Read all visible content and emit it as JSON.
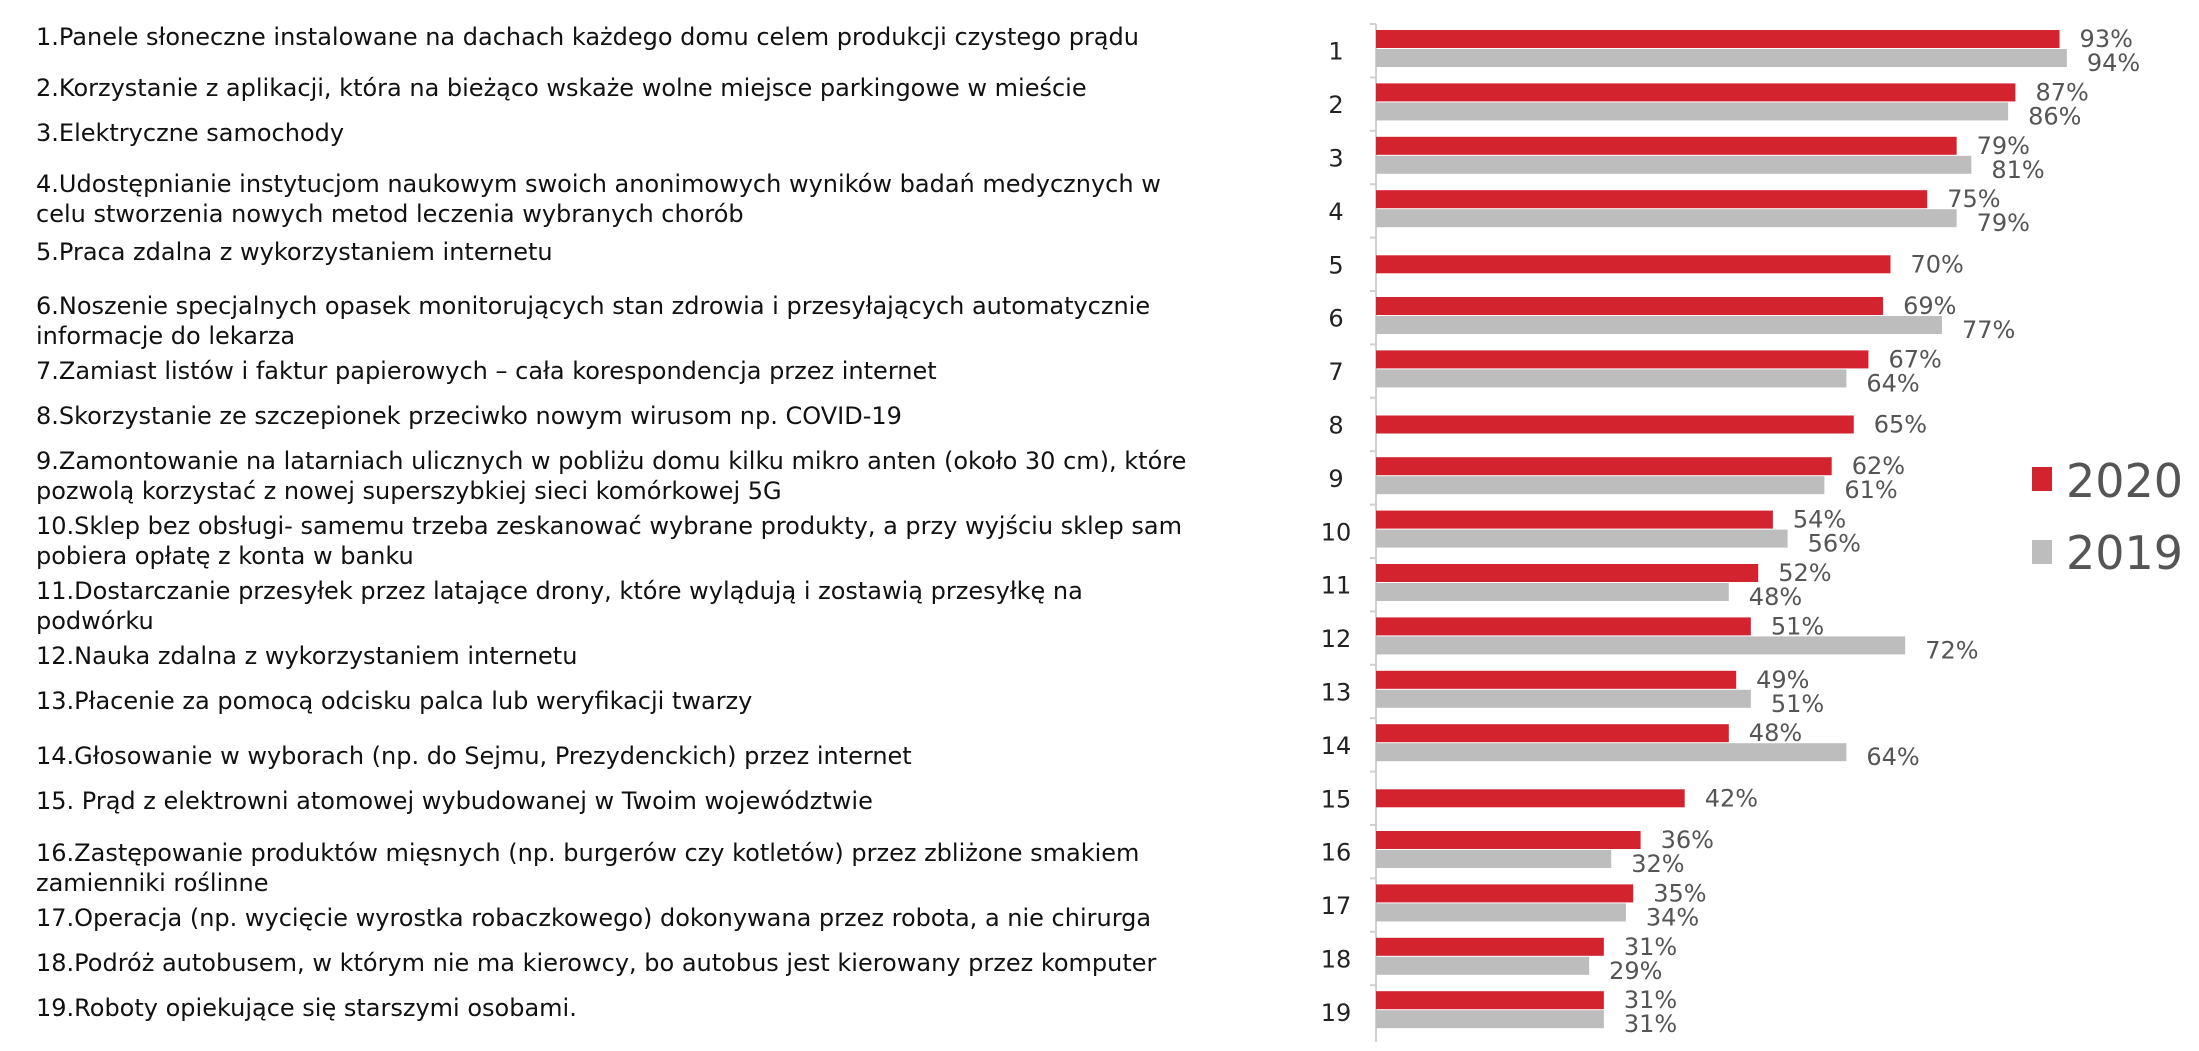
{
  "items": [
    "1.Panele słoneczne instalowane na dachach każdego domu celem produkcji czystego prądu",
    "2.Korzystanie z aplikacji, która na bieżąco wskaże wolne miejsce parkingowe w mieście",
    "3.Elektryczne samochody",
    "4.Udostępnianie instytucjom naukowym swoich anonimowych wyników badań medycznych w\ncelu stworzenia nowych metod leczenia wybranych chorób",
    "5.Praca zdalna z wykorzystaniem internetu",
    "6.Noszenie specjalnych opasek monitorujących stan zdrowia i przesyłających automatycznie\ninformacje do lekarza",
    "7.Zamiast listów i faktur papierowych – cała korespondencja przez internet",
    "8.Skorzystanie ze szczepionek przeciwko nowym wirusom np. COVID-19",
    "9.Zamontowanie na latarniach ulicznych w pobliżu domu kilku mikro anten (około 30 cm), które\npozwolą korzystać z nowej superszybkiej sieci komórkowej 5G",
    "10.Sklep bez obsługi- samemu trzeba zeskanować wybrane produkty, a przy wyjściu sklep sam\npobiera opłatę z konta w banku",
    "11.Dostarczanie przesyłek przez latające drony, które wylądują i zostawią przesyłkę na\npodwórku",
    "12.Nauka zdalna z wykorzystaniem internetu",
    "13.Płacenie za pomocą odcisku palca lub weryfikacji twarzy",
    "14.Głosowanie w wyborach (np. do Sejmu, Prezydenckich) przez internet",
    "15. Prąd z elektrowni atomowej wybudowanej w Twoim województwie",
    "16.Zastępowanie produktów mięsnych (np. burgerów czy kotletów) przez zbliżone smakiem\nzamienniki roślinne",
    "17.Operacja (np. wycięcie wyrostka robaczkowego) dokonywana przez robota, a nie chirurga",
    "18.Podróż autobusem, w którym nie ma kierowcy, bo autobus jest kierowany przez komputer",
    "19.Roboty opiekujące się starszymi osobami."
  ],
  "chart_data": {
    "type": "bar",
    "orientation": "horizontal",
    "categories": [
      "1",
      "2",
      "3",
      "4",
      "5",
      "6",
      "7",
      "8",
      "9",
      "10",
      "11",
      "12",
      "13",
      "14",
      "15",
      "16",
      "17",
      "18",
      "19"
    ],
    "series": [
      {
        "name": "2020",
        "color": "#d2232f",
        "values": [
          93,
          87,
          79,
          75,
          70,
          69,
          67,
          65,
          62,
          54,
          52,
          51,
          49,
          48,
          42,
          36,
          35,
          31,
          31
        ]
      },
      {
        "name": "2019",
        "color": "#bdbdbd",
        "values": [
          94,
          86,
          81,
          79,
          null,
          77,
          64,
          null,
          61,
          56,
          48,
          72,
          51,
          64,
          null,
          32,
          34,
          29,
          31
        ]
      }
    ],
    "value_suffix": "%",
    "legend_position": "right",
    "xlim": [
      0,
      100
    ]
  }
}
